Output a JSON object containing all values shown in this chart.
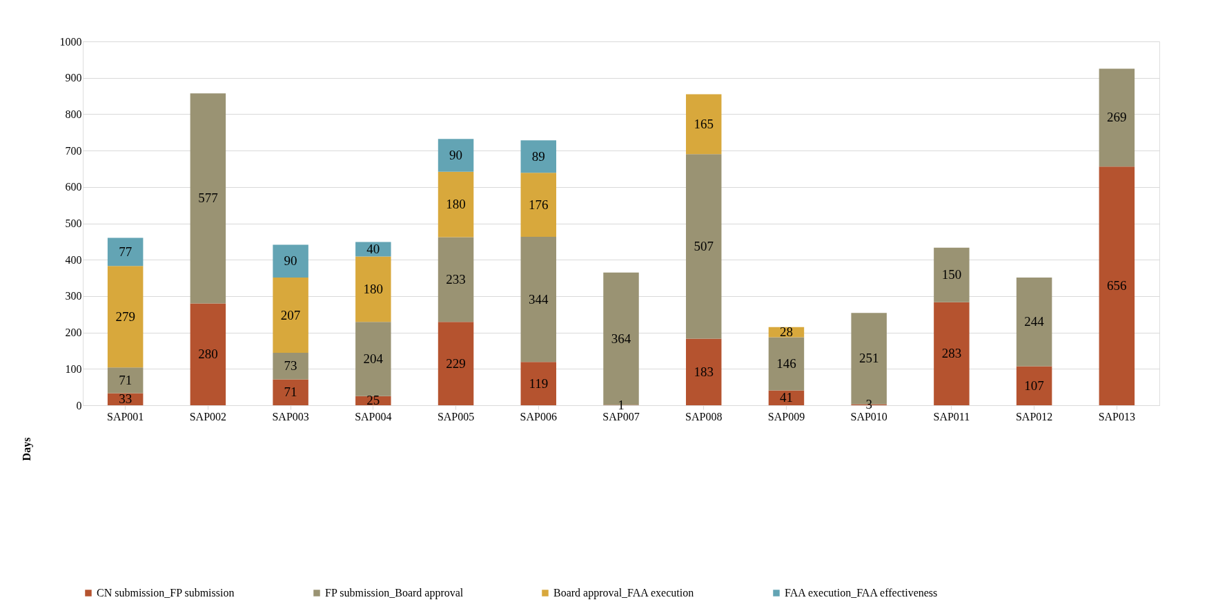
{
  "chart_data": {
    "type": "bar",
    "stacked": true,
    "ylabel": "Days",
    "categories": [
      "SAP001",
      "SAP002",
      "SAP003",
      "SAP004",
      "SAP005",
      "SAP006",
      "SAP007",
      "SAP008",
      "SAP009",
      "SAP010",
      "SAP011",
      "SAP012",
      "SAP013"
    ],
    "series": [
      {
        "name": "CN submission_FP submission",
        "color": "#b5532f",
        "values": [
          33,
          280,
          71,
          25,
          229,
          119,
          1,
          183,
          41,
          3,
          283,
          107,
          656
        ]
      },
      {
        "name": "FP submission_Board approval",
        "color": "#9a9373",
        "values": [
          71,
          577,
          73,
          204,
          233,
          344,
          364,
          507,
          146,
          251,
          150,
          244,
          269
        ]
      },
      {
        "name": "Board approval_FAA execution",
        "color": "#d8a83c",
        "values": [
          279,
          null,
          207,
          180,
          180,
          176,
          null,
          165,
          28,
          null,
          null,
          null,
          null
        ]
      },
      {
        "name": "FAA execution_FAA effectiveness",
        "color": "#63a4b4",
        "values": [
          77,
          null,
          90,
          40,
          90,
          89,
          null,
          null,
          null,
          null,
          null,
          null,
          null
        ]
      }
    ],
    "ylim": [
      0,
      1000
    ],
    "yticks": [
      0,
      100,
      200,
      300,
      400,
      500,
      600,
      700,
      800,
      900,
      1000
    ],
    "grid": "y",
    "legend": "bottom",
    "data_labels": true
  }
}
